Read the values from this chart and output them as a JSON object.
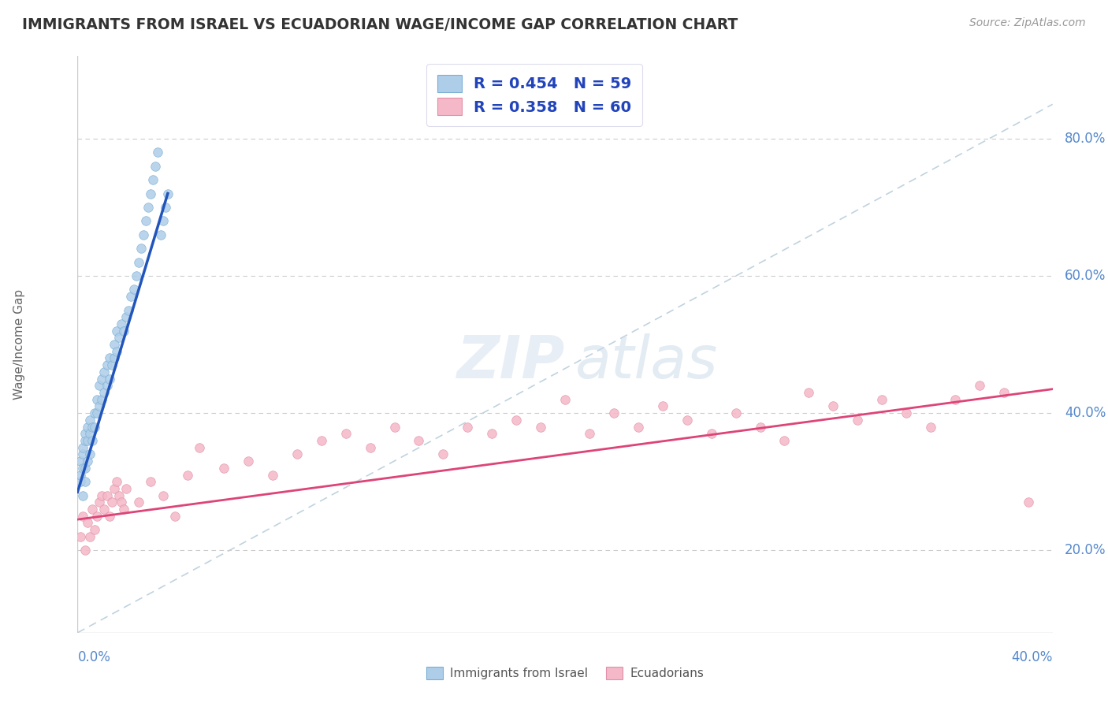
{
  "title": "IMMIGRANTS FROM ISRAEL VS ECUADORIAN WAGE/INCOME GAP CORRELATION CHART",
  "source": "Source: ZipAtlas.com",
  "ylabel": "Wage/Income Gap",
  "y_ticks": [
    0.2,
    0.4,
    0.6,
    0.8
  ],
  "y_tick_labels": [
    "20.0%",
    "40.0%",
    "60.0%",
    "80.0%"
  ],
  "series1_label": "Immigrants from Israel",
  "series1_R": "0.454",
  "series1_N": "59",
  "series1_color": "#aecde8",
  "series1_edge": "#7aafd4",
  "series2_label": "Ecuadorians",
  "series2_R": "0.358",
  "series2_N": "60",
  "series2_color": "#f5b8c8",
  "series2_edge": "#e090a8",
  "trend1_color": "#2255bb",
  "trend2_color": "#dd4477",
  "ref_line_color": "#b0c8d8",
  "background_color": "#ffffff",
  "legend_text_color": "#2244bb",
  "right_axis_color": "#5588cc",
  "xlim": [
    0.0,
    0.4
  ],
  "ylim": [
    0.08,
    0.92
  ],
  "israel_x": [
    0.001,
    0.001,
    0.001,
    0.002,
    0.002,
    0.002,
    0.002,
    0.003,
    0.003,
    0.003,
    0.003,
    0.004,
    0.004,
    0.004,
    0.005,
    0.005,
    0.005,
    0.006,
    0.006,
    0.007,
    0.007,
    0.008,
    0.008,
    0.009,
    0.009,
    0.01,
    0.01,
    0.011,
    0.011,
    0.012,
    0.012,
    0.013,
    0.013,
    0.014,
    0.015,
    0.015,
    0.016,
    0.016,
    0.017,
    0.018,
    0.019,
    0.02,
    0.021,
    0.022,
    0.023,
    0.024,
    0.025,
    0.026,
    0.027,
    0.028,
    0.029,
    0.03,
    0.031,
    0.032,
    0.033,
    0.034,
    0.035,
    0.036,
    0.037
  ],
  "israel_y": [
    0.3,
    0.31,
    0.33,
    0.28,
    0.32,
    0.34,
    0.35,
    0.3,
    0.32,
    0.36,
    0.37,
    0.33,
    0.36,
    0.38,
    0.34,
    0.37,
    0.39,
    0.36,
    0.38,
    0.38,
    0.4,
    0.4,
    0.42,
    0.41,
    0.44,
    0.42,
    0.45,
    0.43,
    0.46,
    0.44,
    0.47,
    0.45,
    0.48,
    0.47,
    0.48,
    0.5,
    0.49,
    0.52,
    0.51,
    0.53,
    0.52,
    0.54,
    0.55,
    0.57,
    0.58,
    0.6,
    0.62,
    0.64,
    0.66,
    0.68,
    0.7,
    0.72,
    0.74,
    0.76,
    0.78,
    0.66,
    0.68,
    0.7,
    0.72
  ],
  "ecuador_x": [
    0.001,
    0.002,
    0.003,
    0.004,
    0.005,
    0.006,
    0.007,
    0.008,
    0.009,
    0.01,
    0.011,
    0.012,
    0.013,
    0.014,
    0.015,
    0.016,
    0.017,
    0.018,
    0.019,
    0.02,
    0.025,
    0.03,
    0.035,
    0.04,
    0.045,
    0.05,
    0.06,
    0.07,
    0.08,
    0.09,
    0.1,
    0.11,
    0.12,
    0.13,
    0.14,
    0.15,
    0.16,
    0.17,
    0.18,
    0.19,
    0.2,
    0.21,
    0.22,
    0.23,
    0.24,
    0.25,
    0.26,
    0.27,
    0.28,
    0.29,
    0.3,
    0.31,
    0.32,
    0.33,
    0.34,
    0.35,
    0.36,
    0.37,
    0.38,
    0.39
  ],
  "ecuador_y": [
    0.22,
    0.25,
    0.2,
    0.24,
    0.22,
    0.26,
    0.23,
    0.25,
    0.27,
    0.28,
    0.26,
    0.28,
    0.25,
    0.27,
    0.29,
    0.3,
    0.28,
    0.27,
    0.26,
    0.29,
    0.27,
    0.3,
    0.28,
    0.25,
    0.31,
    0.35,
    0.32,
    0.33,
    0.31,
    0.34,
    0.36,
    0.37,
    0.35,
    0.38,
    0.36,
    0.34,
    0.38,
    0.37,
    0.39,
    0.38,
    0.42,
    0.37,
    0.4,
    0.38,
    0.41,
    0.39,
    0.37,
    0.4,
    0.38,
    0.36,
    0.43,
    0.41,
    0.39,
    0.42,
    0.4,
    0.38,
    0.42,
    0.44,
    0.43,
    0.27
  ],
  "israel_trend_x": [
    0.0,
    0.037
  ],
  "israel_trend_y": [
    0.285,
    0.72
  ],
  "ecuador_trend_x": [
    0.0,
    0.4
  ],
  "ecuador_trend_y": [
    0.245,
    0.435
  ],
  "ref_line_x": [
    0.0,
    0.4
  ],
  "ref_line_y": [
    0.08,
    0.85
  ]
}
